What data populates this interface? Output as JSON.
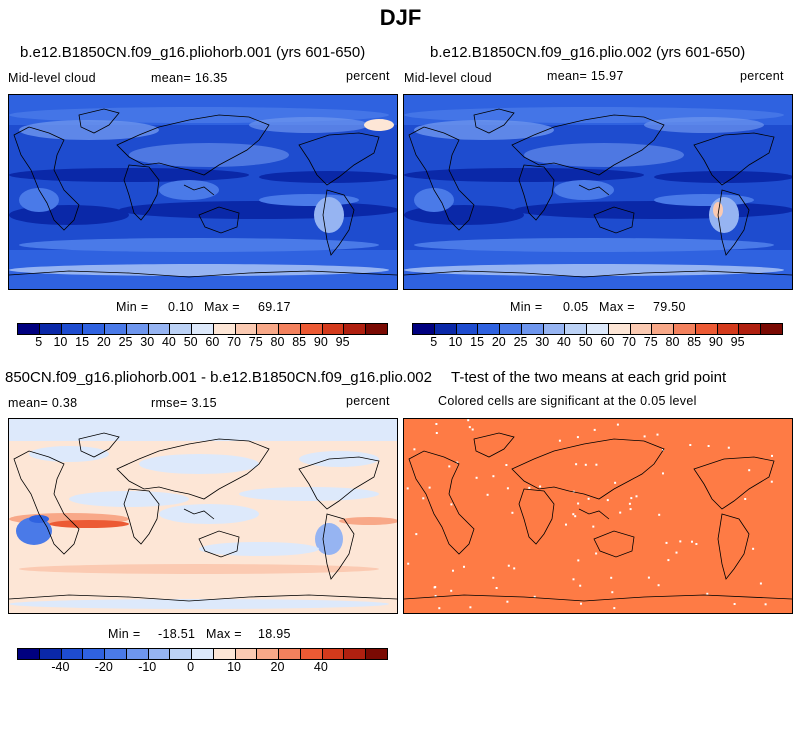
{
  "main_title": "DJF",
  "palettes": {
    "mid_cloud": [
      "#00007f",
      "#0a28a8",
      "#1e4ccf",
      "#2f62e0",
      "#4a7ae8",
      "#6e96ee",
      "#96b4f2",
      "#bcd2f6",
      "#dde9fb",
      "#fde6d6",
      "#fbcab2",
      "#f8a888",
      "#f3815d",
      "#ec5a34",
      "#d33a1c",
      "#b02010",
      "#7a0a03"
    ],
    "diff": [
      "#00007f",
      "#0a28a8",
      "#1e4ccf",
      "#2f62e0",
      "#4a7ae8",
      "#6e96ee",
      "#96b4f2",
      "#bcd2f6",
      "#dde9fb",
      "#fde6d6",
      "#fbcab2",
      "#f8a888",
      "#f3815d",
      "#ec5a34",
      "#d33a1c",
      "#b02010",
      "#7a0a03"
    ]
  },
  "panels": {
    "p1": {
      "title": "b.e12.B1850CN.f09_g16.pliohorb.001 (yrs 601-650)",
      "left": "Mid-level cloud",
      "center": "mean=  16.35",
      "right": "percent",
      "min_label": "Min =",
      "min_val": "0.10",
      "max_label": "Max =",
      "max_val": "69.17",
      "labelbar_labels": [
        "5",
        "10",
        "15",
        "20",
        "25",
        "30",
        "40",
        "50",
        "60",
        "70",
        "75",
        "80",
        "85",
        "90",
        "95"
      ]
    },
    "p2": {
      "title": "b.e12.B1850CN.f09_g16.plio.002 (yrs 601-650)",
      "left": "Mid-level cloud",
      "center": "mean=  15.97",
      "right": "percent",
      "min_label": "Min =",
      "min_val": "0.05",
      "max_label": "Max =",
      "max_val": "79.50",
      "labelbar_labels": [
        "5",
        "10",
        "15",
        "20",
        "25",
        "30",
        "40",
        "50",
        "60",
        "70",
        "75",
        "80",
        "85",
        "90",
        "95"
      ]
    },
    "p3": {
      "title": "850CN.f09_g16.pliohorb.001 - b.e12.B1850CN.f09_g16.plio.002",
      "left": "mean=   0.38",
      "center": "rmse=   3.15",
      "right": "percent",
      "min_label": "Min =",
      "min_val": "-18.51",
      "max_label": "Max =",
      "max_val": "18.95",
      "labelbar_labels": [
        "-40",
        "-20",
        "-10",
        "0",
        "10",
        "20",
        "40"
      ]
    },
    "p4": {
      "title": "T-test of the two means at each grid point",
      "subtitle": "Colored cells are significant at the 0.05 level"
    }
  },
  "chart_data": [
    {
      "type": "heatmap",
      "title": "b.e12.B1850CN.f09_g16.pliohorb.001 (yrs 601-650)",
      "variable": "Mid-level cloud",
      "units": "percent",
      "mean": 16.35,
      "min": 0.1,
      "max": 69.17,
      "levels": [
        5,
        10,
        15,
        20,
        25,
        30,
        40,
        50,
        60,
        70,
        75,
        80,
        85,
        90,
        95
      ]
    },
    {
      "type": "heatmap",
      "title": "b.e12.B1850CN.f09_g16.plio.002 (yrs 601-650)",
      "variable": "Mid-level cloud",
      "units": "percent",
      "mean": 15.97,
      "min": 0.05,
      "max": 79.5,
      "levels": [
        5,
        10,
        15,
        20,
        25,
        30,
        40,
        50,
        60,
        70,
        75,
        80,
        85,
        90,
        95
      ]
    },
    {
      "type": "heatmap",
      "title": "850CN.f09_g16.pliohorb.001 - b.e12.B1850CN.f09_g16.plio.002",
      "units": "percent",
      "mean": 0.38,
      "rmse": 3.15,
      "min": -18.51,
      "max": 18.95,
      "labelbar_labels": [
        -40,
        -20,
        -10,
        0,
        10,
        20,
        40
      ]
    },
    {
      "type": "heatmap",
      "title": "T-test of the two means at each grid point",
      "subtitle": "Colored cells are significant at the 0.05 level",
      "significance_level": 0.05,
      "fill_color": "#fe7b45"
    }
  ]
}
